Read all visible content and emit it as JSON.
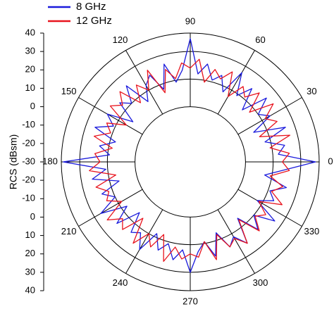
{
  "chart_data": {
    "type": "polar-line",
    "y_label": "RCS (dBsm)",
    "rlim": [
      -30,
      40
    ],
    "yticks": [
      40,
      30,
      20,
      10,
      0,
      -10,
      -20,
      -30,
      -20,
      -10,
      0,
      10,
      20,
      30,
      40
    ],
    "rings": [
      0,
      15,
      30,
      40
    ],
    "angle_ticks": [
      0,
      30,
      60,
      90,
      120,
      150,
      180,
      210,
      240,
      270,
      300,
      330
    ],
    "theta": [
      0,
      5,
      10,
      15,
      20,
      25,
      30,
      35,
      40,
      45,
      50,
      55,
      60,
      65,
      70,
      75,
      80,
      85,
      90,
      95,
      100,
      105,
      110,
      115,
      120,
      125,
      130,
      135,
      140,
      145,
      150,
      155,
      160,
      165,
      170,
      175,
      180,
      185,
      190,
      195,
      200,
      205,
      210,
      215,
      220,
      225,
      230,
      235,
      240,
      245,
      250,
      255,
      260,
      265,
      270,
      275,
      280,
      285,
      290,
      295,
      300,
      305,
      310,
      315,
      320,
      325,
      330,
      335,
      340,
      345,
      350,
      355
    ],
    "series": [
      {
        "name": "8 GHz",
        "color": "#1a1adc",
        "values": [
          38,
          18,
          22,
          12,
          25,
          8,
          20,
          15,
          24,
          10,
          22,
          14,
          26,
          12,
          20,
          16,
          24,
          18,
          37,
          20,
          14,
          25,
          12,
          22,
          18,
          10,
          24,
          15,
          20,
          8,
          22,
          16,
          25,
          12,
          20,
          14,
          39,
          16,
          24,
          10,
          21,
          15,
          26,
          12,
          22,
          9,
          20,
          17,
          25,
          13,
          21,
          16,
          24,
          18,
          30,
          19,
          14,
          23,
          11,
          21,
          17,
          24,
          10,
          22,
          15,
          26,
          12,
          20,
          16,
          24,
          11,
          21
        ]
      },
      {
        "name": "12 GHz",
        "color": "#e8141e",
        "values": [
          20,
          24,
          14,
          26,
          10,
          22,
          17,
          25,
          12,
          23,
          16,
          20,
          11,
          24,
          18,
          22,
          14,
          26,
          21,
          24,
          16,
          22,
          10,
          25,
          15,
          21,
          12,
          24,
          18,
          23,
          10,
          20,
          16,
          24,
          13,
          22,
          19,
          25,
          11,
          23,
          17,
          20,
          13,
          25,
          18,
          22,
          10,
          24,
          15,
          21,
          12,
          26,
          17,
          23,
          20,
          22,
          14,
          25,
          12,
          21,
          18,
          24,
          11,
          23,
          16,
          20,
          13,
          25,
          17,
          22,
          14,
          24
        ]
      }
    ],
    "legend": "upper-left"
  }
}
